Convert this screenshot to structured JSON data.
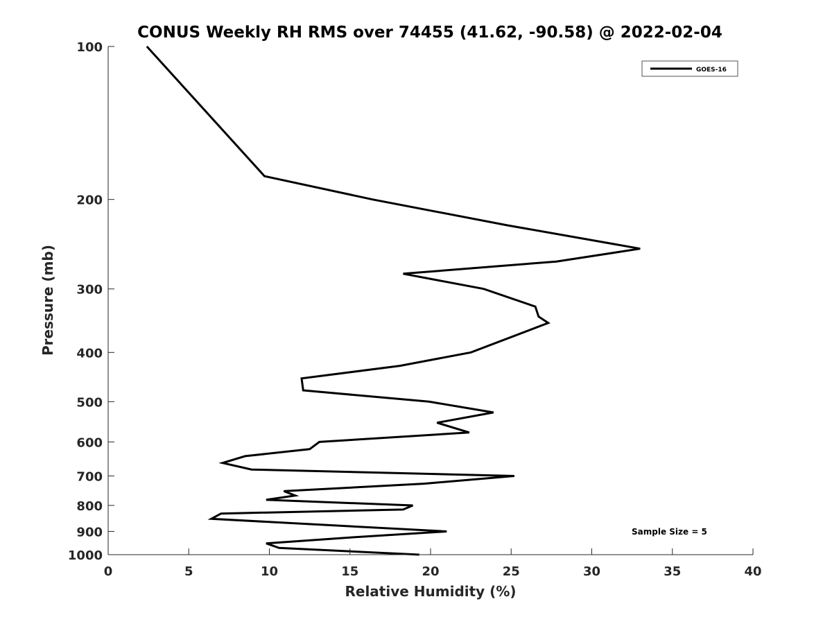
{
  "chart_data": {
    "type": "line",
    "title": "CONUS Weekly RH RMS over 74455 (41.62, -90.58) @ 2022-02-04",
    "xlabel": "Relative Humidity (%)",
    "ylabel": "Pressure (mb)",
    "xlim": [
      0,
      40
    ],
    "ylim": [
      100,
      1000
    ],
    "yscale": "log",
    "y_reversed": true,
    "x_ticks": [
      "0",
      "5",
      "10",
      "15",
      "20",
      "25",
      "30",
      "35",
      "40"
    ],
    "y_ticks": [
      "100",
      "200",
      "300",
      "400",
      "500",
      "600",
      "700",
      "800",
      "900",
      "1000"
    ],
    "grid": false,
    "legend": {
      "placement": "top-right",
      "entries": [
        "GOES-16"
      ]
    },
    "annotation": "Sample Size = 5",
    "series": [
      {
        "name": "GOES-16",
        "color": "#000000",
        "points": [
          [
            2.4,
            100
          ],
          [
            9.7,
            180
          ],
          [
            16.4,
            200
          ],
          [
            24.8,
            225
          ],
          [
            33.0,
            250
          ],
          [
            27.8,
            265
          ],
          [
            18.3,
            280
          ],
          [
            23.3,
            300
          ],
          [
            26.5,
            325
          ],
          [
            26.7,
            340
          ],
          [
            27.3,
            350
          ],
          [
            22.5,
            400
          ],
          [
            18.1,
            425
          ],
          [
            12.0,
            450
          ],
          [
            12.1,
            475
          ],
          [
            19.9,
            500
          ],
          [
            23.9,
            525
          ],
          [
            20.4,
            550
          ],
          [
            22.4,
            575
          ],
          [
            13.1,
            600
          ],
          [
            12.5,
            620
          ],
          [
            8.5,
            640
          ],
          [
            7.1,
            660
          ],
          [
            8.9,
            680
          ],
          [
            25.2,
            700
          ],
          [
            19.6,
            725
          ],
          [
            10.9,
            750
          ],
          [
            11.6,
            765
          ],
          [
            9.8,
            780
          ],
          [
            18.9,
            800
          ],
          [
            18.3,
            815
          ],
          [
            7.0,
            830
          ],
          [
            6.4,
            850
          ],
          [
            21.0,
            900
          ],
          [
            15.0,
            925
          ],
          [
            9.8,
            950
          ],
          [
            10.6,
            970
          ],
          [
            19.3,
            1000
          ]
        ]
      }
    ]
  }
}
